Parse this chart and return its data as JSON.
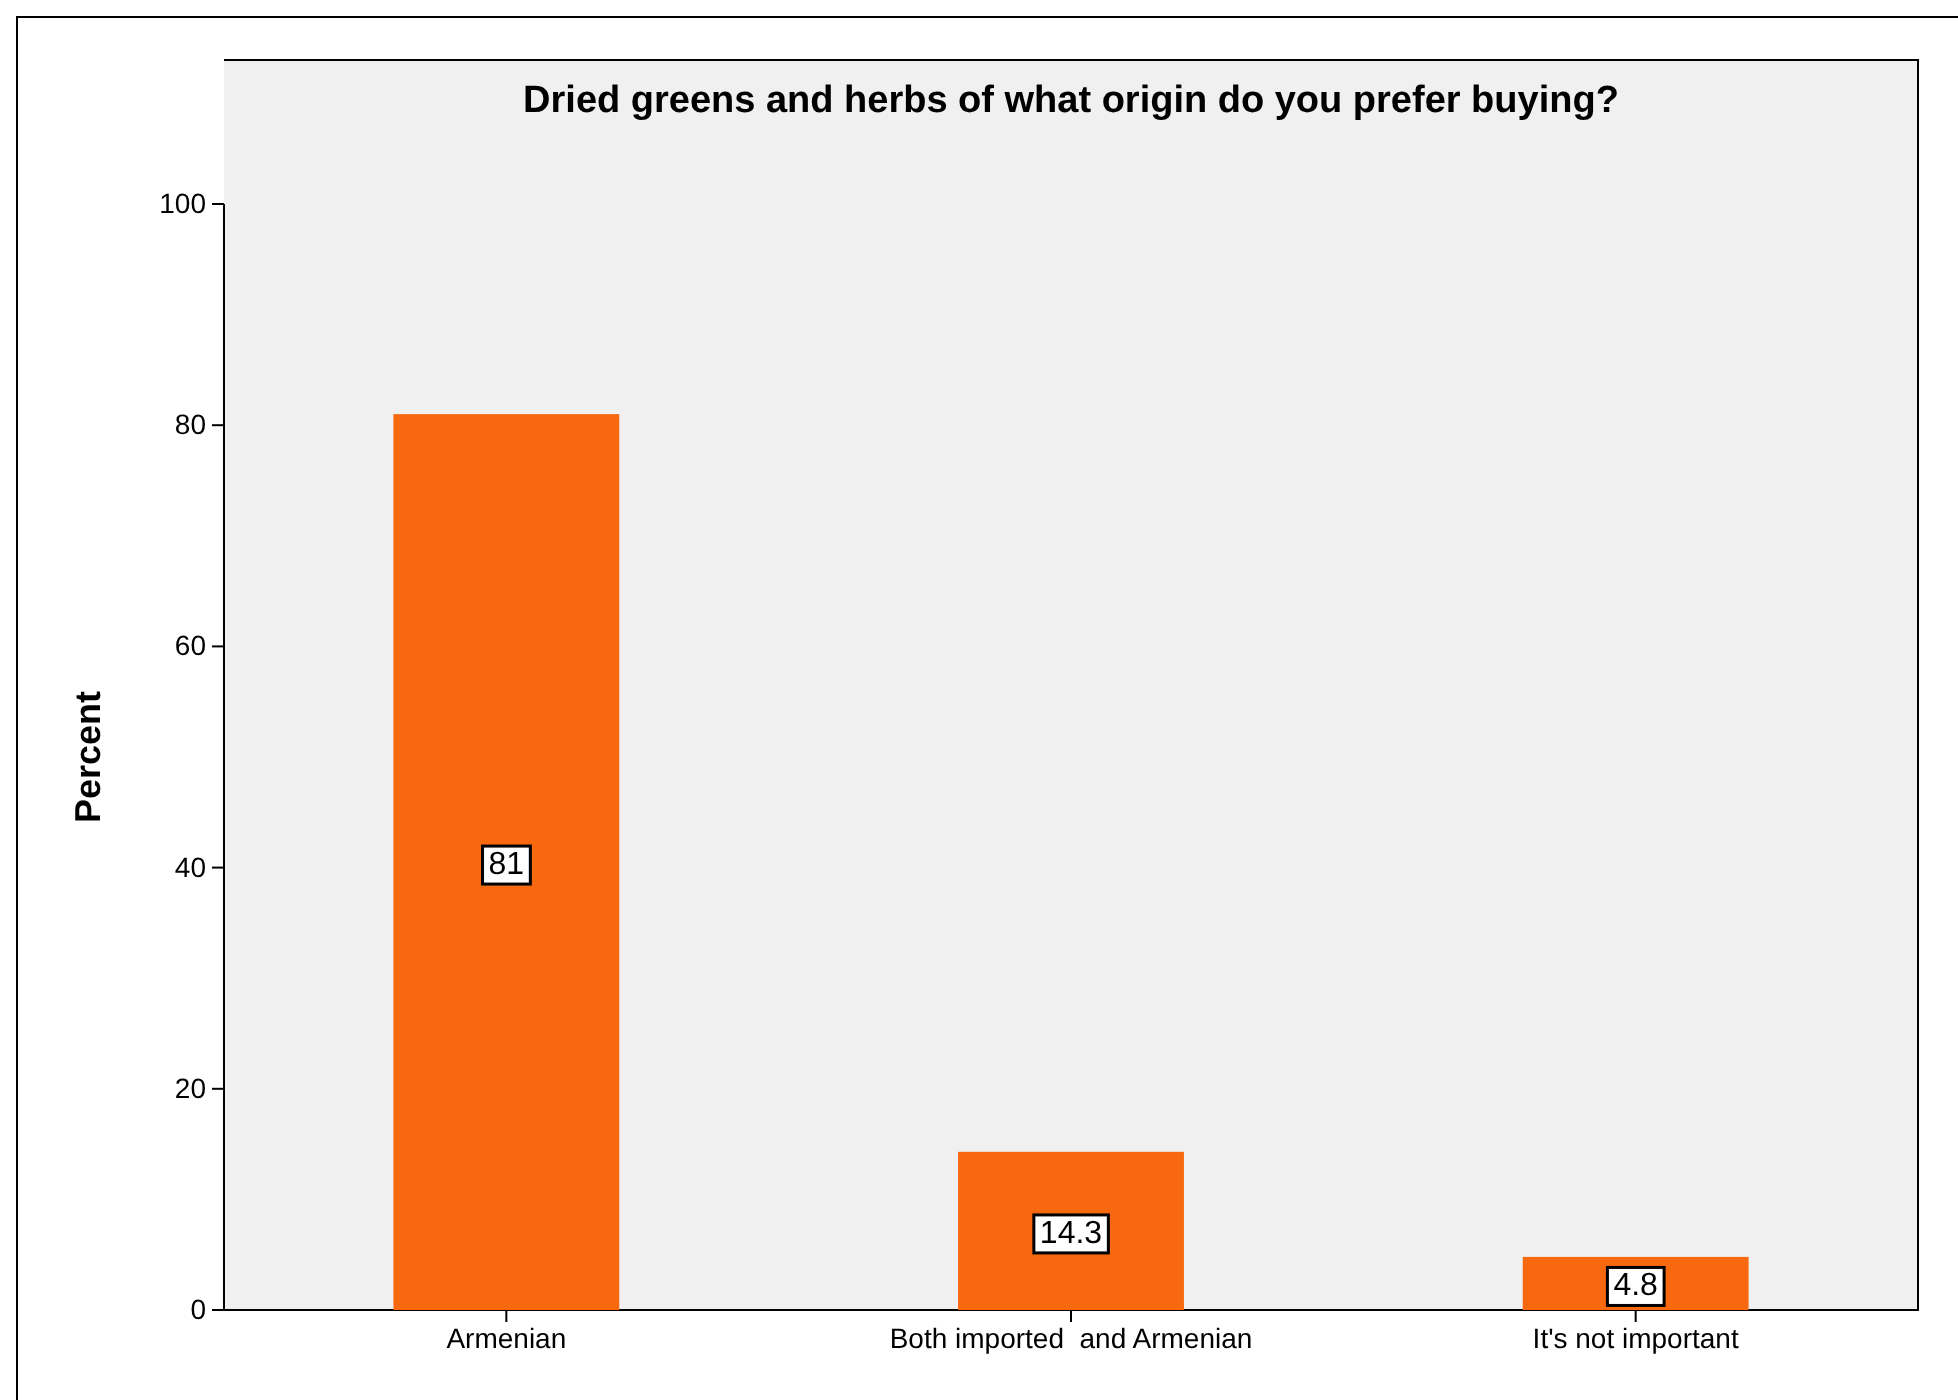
{
  "chart_data": {
    "type": "bar",
    "title": "Dried greens and herbs of what origin do you prefer buying?",
    "ylabel": "Percent",
    "categories": [
      "Armenian",
      "Both imported  and Armenian",
      "It's not important"
    ],
    "values": [
      81,
      14.3,
      4.8
    ],
    "color": "#f8690f",
    "ylim": [
      0,
      100
    ],
    "yticks": [
      0,
      20,
      40,
      60,
      80,
      100
    ],
    "grid": false,
    "data_labels": true
  }
}
